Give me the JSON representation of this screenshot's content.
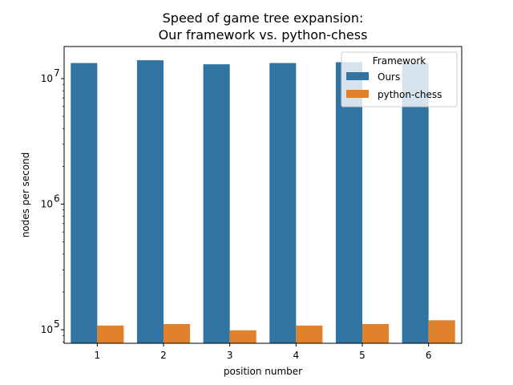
{
  "chart_data": {
    "type": "bar",
    "title": "Speed of game tree expansion:",
    "subtitle": "Our framework vs. python-chess",
    "xlabel": "position number",
    "ylabel": "nodes per second",
    "yscale": "log",
    "ylim": [
      78000,
      18000000
    ],
    "yticks": [
      {
        "value": 100000,
        "base": "10",
        "exp": "5"
      },
      {
        "value": 1000000,
        "base": "10",
        "exp": "6"
      },
      {
        "value": 10000000,
        "base": "10",
        "exp": "7"
      }
    ],
    "categories": [
      "1",
      "2",
      "3",
      "4",
      "5",
      "6"
    ],
    "series": [
      {
        "name": "Ours",
        "color": "#3274a1",
        "values": [
          13300000,
          14000000,
          13000000,
          13300000,
          13500000,
          13300000
        ]
      },
      {
        "name": "python-chess",
        "color": "#e1812c",
        "values": [
          108000,
          111000,
          99000,
          108000,
          111000,
          119000
        ]
      }
    ],
    "legend": {
      "title": "Framework",
      "placement": "top-right"
    },
    "grid": false
  }
}
